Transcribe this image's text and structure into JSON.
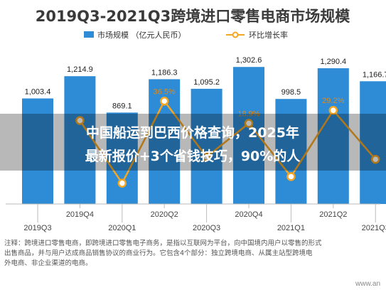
{
  "chart_data": {
    "type": "bar",
    "title": "2019Q3-2021Q3跨境进口零售电商市场规模",
    "categories": [
      "2019Q3",
      "2019Q4",
      "2020Q1",
      "2020Q2",
      "2020Q3",
      "2020Q4",
      "2021Q1",
      "2021Q2",
      "2021Q3"
    ],
    "series": [
      {
        "name": "市场规模 （亿元人民币）",
        "type": "bar",
        "color": "#2e8bd6",
        "values": [
          1003.4,
          1214.9,
          869.1,
          1186.3,
          1095.2,
          1302.6,
          998.5,
          1290.4,
          1166.7
        ],
        "labels": [
          "1,003.4",
          "1,214.9",
          "869.1",
          "1,186.3",
          "1,095.2",
          "1,302.6",
          "998.5",
          "1,290.4",
          "1,166.7"
        ]
      },
      {
        "name": "环比增长率",
        "type": "line",
        "color": "#f5a623",
        "values": [
          null,
          21.1,
          -28.5,
          36.5,
          -7.7,
          18.9,
          -23.3,
          29.2,
          -9.6
        ],
        "labels": [
          "",
          "",
          "",
          "36.5%",
          "",
          "18.9%",
          "",
          "29.2%",
          ""
        ]
      }
    ],
    "ylim_left": [
      0,
      1500
    ],
    "ylim_right": [
      -45,
      80
    ],
    "grid": false,
    "legend": "top-center"
  },
  "note": {
    "lines": [
      "注释：跨境进口零售电商，即跨境进口零售电子商务，是指以互联网为平台，向中国境内用户以零售的形式",
      "出售商品，并与用户达成商品销售协议的商业行为。它包含4个部分：独立跨境电商、从属主站型跨境电",
      "外电商、非企业渠道的电商。"
    ]
  },
  "overlay": {
    "line1": "中国船运到巴西价格查询，2025年",
    "line2": "最新报价+3个省钱技巧，90%的人"
  },
  "watermark": "www.an"
}
